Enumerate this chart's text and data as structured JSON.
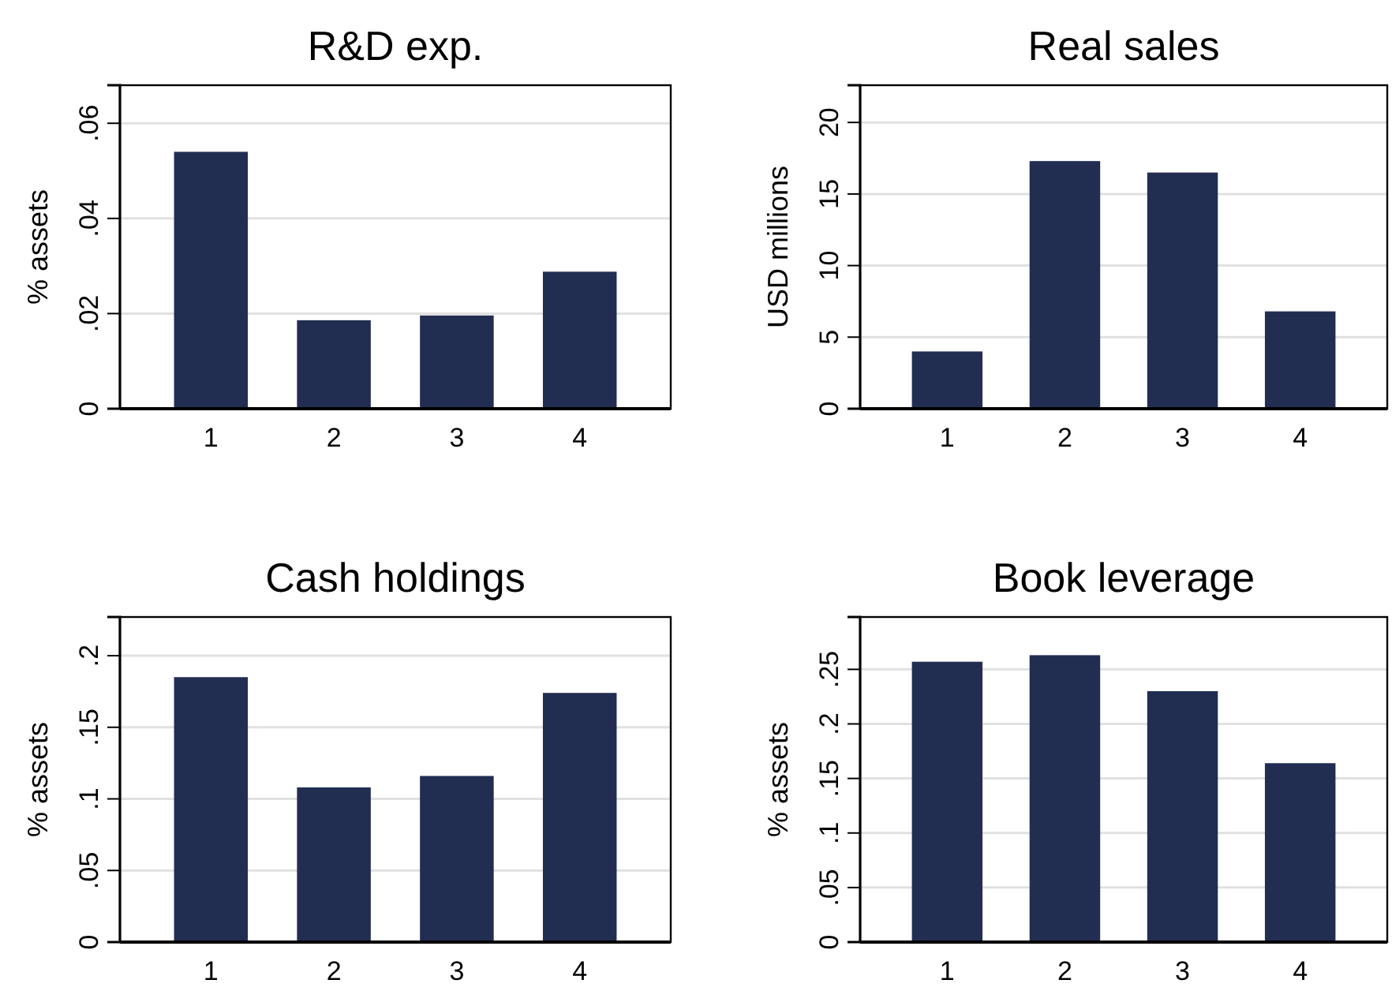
{
  "chart_data": [
    {
      "type": "bar",
      "title": "R&D exp.",
      "ylabel": "% assets",
      "categories": [
        "1",
        "2",
        "3",
        "4"
      ],
      "values": [
        0.054,
        0.0186,
        0.0196,
        0.0288
      ],
      "color": "#222d52",
      "ylim": [
        0,
        0.068
      ],
      "yticks": [
        {
          "value": 0,
          "label": "0"
        },
        {
          "value": 0.02,
          "label": ".02"
        },
        {
          "value": 0.04,
          "label": ".04"
        },
        {
          "value": 0.06,
          "label": ".06"
        }
      ],
      "grid": "y"
    },
    {
      "type": "bar",
      "title": "Real sales",
      "ylabel": "USD millions",
      "categories": [
        "1",
        "2",
        "3",
        "4"
      ],
      "values": [
        4.0,
        17.3,
        16.5,
        6.8
      ],
      "color": "#222d52",
      "ylim": [
        0,
        22.6
      ],
      "yticks": [
        0,
        5,
        10,
        15,
        20
      ],
      "grid": "y"
    },
    {
      "type": "bar",
      "title": "Cash holdings",
      "ylabel": "% assets",
      "categories": [
        "1",
        "2",
        "3",
        "4"
      ],
      "values": [
        0.185,
        0.108,
        0.116,
        0.174
      ],
      "color": "#222d52",
      "ylim": [
        0,
        0.227
      ],
      "yticks": [
        {
          "value": 0,
          "label": "0"
        },
        {
          "value": 0.05,
          "label": ".05"
        },
        {
          "value": 0.1,
          "label": ".1"
        },
        {
          "value": 0.15,
          "label": ".15"
        },
        {
          "value": 0.2,
          "label": ".2"
        }
      ],
      "grid": "y"
    },
    {
      "type": "bar",
      "title": "Book leverage",
      "ylabel": "% assets",
      "categories": [
        "1",
        "2",
        "3",
        "4"
      ],
      "values": [
        0.257,
        0.263,
        0.23,
        0.164
      ],
      "color": "#222d52",
      "ylim": [
        0,
        0.298
      ],
      "yticks": [
        {
          "value": 0,
          "label": "0"
        },
        {
          "value": 0.05,
          "label": ".05"
        },
        {
          "value": 0.1,
          "label": ".1"
        },
        {
          "value": 0.15,
          "label": ".15"
        },
        {
          "value": 0.2,
          "label": ".2"
        },
        {
          "value": 0.25,
          "label": ".25"
        }
      ],
      "grid": "y"
    }
  ]
}
